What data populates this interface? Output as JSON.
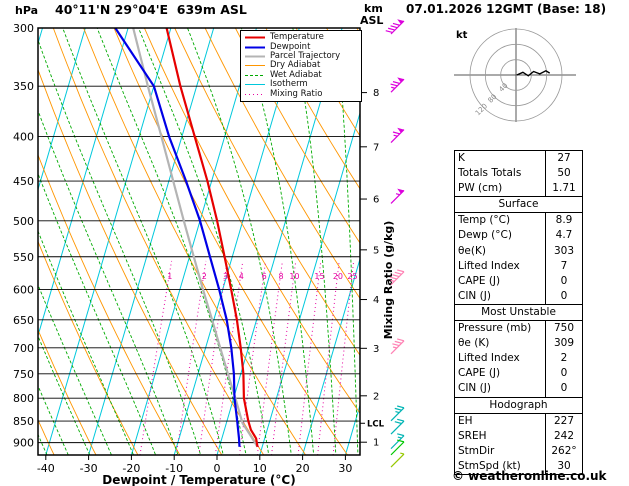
{
  "header": {
    "pressure_unit": "hPa",
    "station": "40°11'N 29°04'E  639m ASL",
    "alt_unit_line1": "km",
    "alt_unit_line2": "ASL",
    "datetime": "07.01.2026 12GMT (Base: 18)"
  },
  "footer": {
    "credit": "© weatheronline.co.uk"
  },
  "legend": {
    "items": [
      {
        "label": "Temperature",
        "color": "#e60000",
        "width": 2,
        "dash": ""
      },
      {
        "label": "Dewpoint",
        "color": "#0000e6",
        "width": 2,
        "dash": ""
      },
      {
        "label": "Parcel Trajectory",
        "color": "#b4b4b4",
        "width": 2,
        "dash": ""
      },
      {
        "label": "Dry Adiabat",
        "color": "#ff9600",
        "width": 1,
        "dash": ""
      },
      {
        "label": "Wet Adiabat",
        "color": "#00aa00",
        "width": 1,
        "dash": "3 2"
      },
      {
        "label": "Isotherm",
        "color": "#00c8dc",
        "width": 1,
        "dash": ""
      },
      {
        "label": "Mixing Ratio",
        "color": "#e600a0",
        "width": 1,
        "dash": "1 3"
      }
    ]
  },
  "axes": {
    "pressure_ticks": [
      300,
      350,
      400,
      450,
      500,
      550,
      600,
      650,
      700,
      750,
      800,
      850,
      900
    ],
    "temp_ticks": [
      -40,
      -30,
      -20,
      -10,
      0,
      10,
      20,
      30
    ],
    "temp_axis_label": "Dewpoint / Temperature (°C)",
    "km_ticks": [
      {
        "km": 1,
        "p": 899
      },
      {
        "km": 2,
        "p": 795
      },
      {
        "km": 3,
        "p": 701
      },
      {
        "km": 4,
        "p": 616
      },
      {
        "km": 5,
        "p": 540
      },
      {
        "km": 6,
        "p": 472
      },
      {
        "km": 7,
        "p": 411
      },
      {
        "km": 8,
        "p": 356
      }
    ],
    "mixing_ratio_axis_label": "Mixing Ratio (g/kg)",
    "lcl_label": "LCL"
  },
  "chart_data": {
    "type": "line",
    "subtype": "skew-t-log-p-sounding",
    "title": "40°11'N 29°04'E  639m ASL",
    "x_axis_label": "Dewpoint / Temperature (°C)",
    "x_range_C": [
      -42,
      33
    ],
    "pressure_range_hPa": [
      930,
      300
    ],
    "lcl_hPa": 855,
    "pressure_hPa": [
      910,
      890,
      870,
      850,
      800,
      750,
      700,
      650,
      600,
      550,
      500,
      450,
      400,
      350,
      300
    ],
    "temperature_C": [
      8.9,
      8.0,
      6.2,
      5.0,
      2.4,
      0.6,
      -1.8,
      -4.6,
      -8.0,
      -11.8,
      -16.0,
      -21.0,
      -27.0,
      -33.8,
      -41.0
    ],
    "dewpoint_C": [
      4.7,
      4.0,
      3.2,
      2.4,
      0.2,
      -1.6,
      -4.0,
      -7.0,
      -10.8,
      -15.2,
      -20.0,
      -26.0,
      -33.0,
      -40.0,
      -53.0
    ],
    "parcel_pressure_hPa": [
      910,
      880,
      855,
      850,
      800,
      750,
      700,
      650,
      600,
      550,
      500,
      450,
      400,
      350,
      300
    ],
    "parcel_C": [
      8.9,
      6.2,
      3.8,
      3.5,
      0.4,
      -3.0,
      -6.6,
      -10.4,
      -14.6,
      -19.0,
      -23.8,
      -29.0,
      -34.8,
      -41.4,
      -48.8
    ],
    "mixing_ratio_lines_gkg": [
      1,
      2,
      3,
      4,
      6,
      8,
      10,
      15,
      20,
      25
    ],
    "wind_barbs": [
      {
        "p": 300,
        "speed_kt": 90,
        "color": "#dc00dc"
      },
      {
        "p": 350,
        "speed_kt": 75,
        "color": "#dc00dc"
      },
      {
        "p": 400,
        "speed_kt": 65,
        "color": "#dc00dc"
      },
      {
        "p": 470,
        "speed_kt": 55,
        "color": "#dc00dc"
      },
      {
        "p": 583,
        "speed_kt": 45,
        "color": "#ff82b4"
      },
      {
        "p": 700,
        "speed_kt": 35,
        "color": "#ff82b4"
      },
      {
        "p": 836,
        "speed_kt": 25,
        "color": "#00b4b4"
      },
      {
        "p": 866,
        "speed_kt": 20,
        "color": "#00b4b4"
      },
      {
        "p": 900,
        "speed_kt": 15,
        "color": "#00b4b4"
      },
      {
        "p": 915,
        "speed_kt": 10,
        "color": "#00c800"
      },
      {
        "p": 945,
        "speed_kt": 5,
        "color": "#96c800"
      }
    ],
    "hodograph_trace_kt": [
      [
        2,
        0
      ],
      [
        18,
        7
      ],
      [
        32,
        -2
      ],
      [
        46,
        9
      ],
      [
        62,
        3
      ],
      [
        78,
        11
      ],
      [
        88,
        5
      ]
    ],
    "hodograph_rings_kt": [
      40,
      80,
      120
    ],
    "colors": {
      "temperature": "#e60000",
      "dewpoint": "#0000e6",
      "parcel": "#b4b4b4",
      "dry_adiabat": "#ff9600",
      "wet_adiabat": "#00aa00",
      "isotherm": "#00c8dc",
      "mixing_ratio": "#e600a0",
      "isobar": "#000000"
    }
  },
  "hodograph": {
    "unit": "kt",
    "ring_labels": [
      "40",
      "80",
      "120"
    ]
  },
  "indices": {
    "rows_top": [
      [
        "K",
        "27"
      ],
      [
        "Totals Totals",
        "50"
      ],
      [
        "PW (cm)",
        "1.71"
      ]
    ],
    "sections": [
      {
        "title": "Surface",
        "rows": [
          [
            "Temp (°C)",
            "8.9"
          ],
          [
            "Dewp (°C)",
            "4.7"
          ],
          [
            "θe(K)",
            "303"
          ],
          [
            "Lifted Index",
            "7"
          ],
          [
            "CAPE (J)",
            "0"
          ],
          [
            "CIN (J)",
            "0"
          ]
        ]
      },
      {
        "title": "Most Unstable",
        "rows": [
          [
            "Pressure (mb)",
            "750"
          ],
          [
            "θe (K)",
            "309"
          ],
          [
            "Lifted Index",
            "2"
          ],
          [
            "CAPE (J)",
            "0"
          ],
          [
            "CIN (J)",
            "0"
          ]
        ]
      },
      {
        "title": "Hodograph",
        "rows": [
          [
            "EH",
            "227"
          ],
          [
            "SREH",
            "242"
          ],
          [
            "StmDir",
            "262°"
          ],
          [
            "StmSpd (kt)",
            "30"
          ]
        ]
      }
    ]
  }
}
